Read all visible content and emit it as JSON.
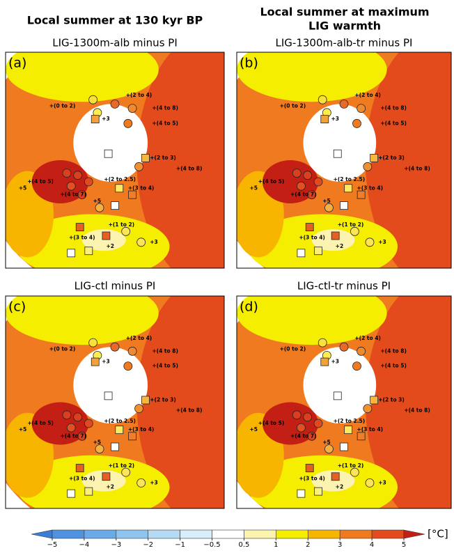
{
  "header": {
    "left": "Local summer at 130 kyr BP",
    "right": [
      "Local summer at maximum",
      "LIG warmth"
    ]
  },
  "panels": [
    {
      "label": "(a)",
      "title": "LIG-1300m-alb minus PI"
    },
    {
      "label": "(b)",
      "title": "LIG-1300m-alb-tr minus PI"
    },
    {
      "label": "(c)",
      "title": "LIG-ctl minus PI"
    },
    {
      "label": "(d)",
      "title": "LIG-ctl-tr minus PI"
    }
  ],
  "site_labels": [
    "+(2 to 4)",
    "+(0 to 2)",
    "+(4 to 8)",
    "+3",
    "+(4 to 5)",
    "+(2 to 3)",
    "+(4 to 8)",
    "+(4 to 5)",
    "+(2 to 2.5)",
    "+(3 to 4)",
    "+5",
    "+(4 to 7)",
    "+5",
    "+(1 to 2)",
    "+(3 to 4)",
    "+2",
    "+3"
  ],
  "colorbar": {
    "unit": "[°C]",
    "ticks": [
      {
        "value": -5,
        "label": "−5"
      },
      {
        "value": -4,
        "label": "−4"
      },
      {
        "value": -3,
        "label": "−3"
      },
      {
        "value": -2,
        "label": "−2"
      },
      {
        "value": -1,
        "label": "−1"
      },
      {
        "value": -0.5,
        "label": "−0.5"
      },
      0.5,
      1,
      2,
      3,
      4,
      5
    ],
    "colors": [
      "#3a7fd5",
      "#4f93e0",
      "#6aaae8",
      "#8ec4f0",
      "#b4daf6",
      "#d8eefb",
      "#ffffff",
      "#fdf3b0",
      "#f5ee00",
      "#f7b500",
      "#f07a20",
      "#e34a1c",
      "#c41f14"
    ]
  }
}
